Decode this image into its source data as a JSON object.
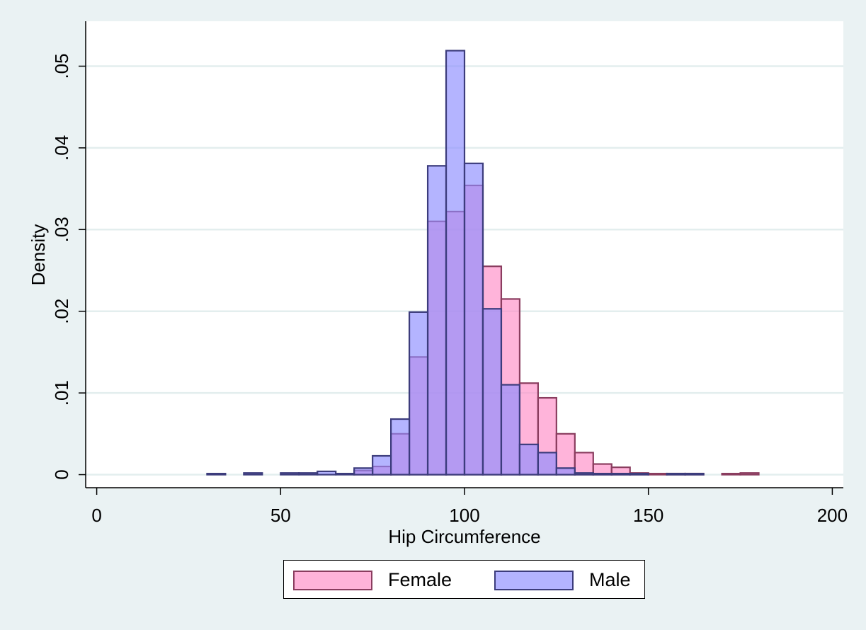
{
  "chart_data": {
    "type": "bar",
    "ylabel": "Density",
    "xlabel": "Hip Circumference",
    "xlim": [
      -3,
      203
    ],
    "ylim": [
      -0.0016,
      0.0555
    ],
    "x_ticks": [
      0,
      50,
      100,
      150,
      200
    ],
    "x_tick_labels": [
      "0",
      "50",
      "100",
      "150",
      "200"
    ],
    "y_ticks": [
      0,
      0.01,
      0.02,
      0.03,
      0.04,
      0.05
    ],
    "y_tick_labels": [
      "0",
      ".01",
      ".02",
      ".03",
      ".04",
      ".05"
    ],
    "grid": true,
    "bin_width": 5,
    "colors": {
      "female_fill": "#ff8cc6",
      "female_edge": "#8a3d5f",
      "male_fill": "#8c8cff",
      "male_edge": "#3c3c7c",
      "background": "#eaf2f3",
      "plot_region": "#ffffff",
      "gridline": "#e3eeee"
    },
    "legend": {
      "position": "bottom",
      "entries": [
        "Female",
        "Male"
      ]
    },
    "series": [
      {
        "name": "Female",
        "bins": [
          {
            "x0": 70,
            "x1": 75,
            "value": 0.0005
          },
          {
            "x0": 75,
            "x1": 80,
            "value": 0.001
          },
          {
            "x0": 80,
            "x1": 85,
            "value": 0.005
          },
          {
            "x0": 85,
            "x1": 90,
            "value": 0.0144
          },
          {
            "x0": 90,
            "x1": 95,
            "value": 0.031
          },
          {
            "x0": 95,
            "x1": 100,
            "value": 0.0322
          },
          {
            "x0": 100,
            "x1": 105,
            "value": 0.0354
          },
          {
            "x0": 105,
            "x1": 110,
            "value": 0.0255
          },
          {
            "x0": 110,
            "x1": 115,
            "value": 0.0215
          },
          {
            "x0": 115,
            "x1": 120,
            "value": 0.0112
          },
          {
            "x0": 120,
            "x1": 125,
            "value": 0.0094
          },
          {
            "x0": 125,
            "x1": 130,
            "value": 0.005
          },
          {
            "x0": 130,
            "x1": 135,
            "value": 0.0027
          },
          {
            "x0": 135,
            "x1": 140,
            "value": 0.0013
          },
          {
            "x0": 140,
            "x1": 145,
            "value": 0.0009
          },
          {
            "x0": 145,
            "x1": 150,
            "value": 0.0002
          },
          {
            "x0": 150,
            "x1": 155,
            "value": 0.0001
          },
          {
            "x0": 155,
            "x1": 160,
            "value": 0.0001
          },
          {
            "x0": 160,
            "x1": 165,
            "value": 0.0001
          },
          {
            "x0": 170,
            "x1": 175,
            "value": 0.0001
          },
          {
            "x0": 175,
            "x1": 180,
            "value": 0.0002
          }
        ]
      },
      {
        "name": "Male",
        "bins": [
          {
            "x0": 30,
            "x1": 35,
            "value": 0.0001
          },
          {
            "x0": 40,
            "x1": 45,
            "value": 0.0002
          },
          {
            "x0": 50,
            "x1": 55,
            "value": 0.0002
          },
          {
            "x0": 55,
            "x1": 60,
            "value": 0.0002
          },
          {
            "x0": 60,
            "x1": 65,
            "value": 0.0004
          },
          {
            "x0": 65,
            "x1": 70,
            "value": 0.0001
          },
          {
            "x0": 70,
            "x1": 75,
            "value": 0.0008
          },
          {
            "x0": 75,
            "x1": 80,
            "value": 0.0023
          },
          {
            "x0": 80,
            "x1": 85,
            "value": 0.0068
          },
          {
            "x0": 85,
            "x1": 90,
            "value": 0.0199
          },
          {
            "x0": 90,
            "x1": 95,
            "value": 0.0378
          },
          {
            "x0": 95,
            "x1": 100,
            "value": 0.0519
          },
          {
            "x0": 100,
            "x1": 105,
            "value": 0.0381
          },
          {
            "x0": 105,
            "x1": 110,
            "value": 0.0203
          },
          {
            "x0": 110,
            "x1": 115,
            "value": 0.011
          },
          {
            "x0": 115,
            "x1": 120,
            "value": 0.0037
          },
          {
            "x0": 120,
            "x1": 125,
            "value": 0.0027
          },
          {
            "x0": 125,
            "x1": 130,
            "value": 0.0008
          },
          {
            "x0": 130,
            "x1": 135,
            "value": 0.0002
          },
          {
            "x0": 135,
            "x1": 140,
            "value": 0.0001
          },
          {
            "x0": 140,
            "x1": 145,
            "value": 0.0001
          },
          {
            "x0": 145,
            "x1": 150,
            "value": 0.0001
          },
          {
            "x0": 155,
            "x1": 160,
            "value": 0.0001
          },
          {
            "x0": 160,
            "x1": 165,
            "value": 0.0001
          }
        ]
      }
    ]
  }
}
